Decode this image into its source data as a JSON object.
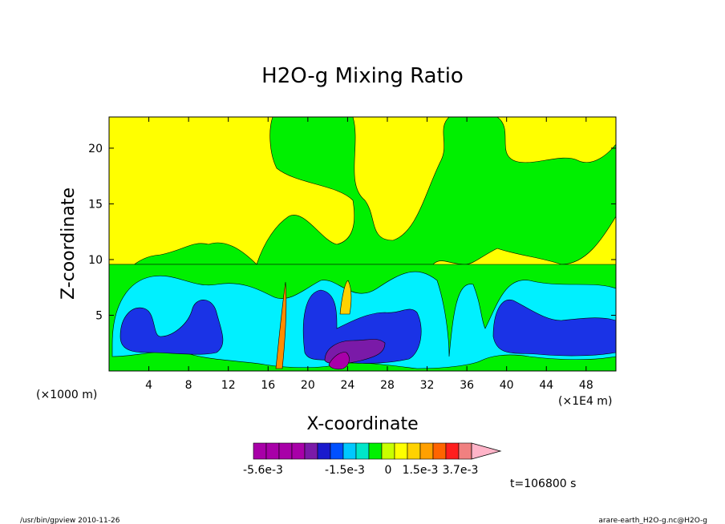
{
  "chart_data": {
    "type": "heatmap",
    "title": "H2O-g Mixing Ratio",
    "xlabel": "X-coordinate",
    "ylabel": "Z-coordinate",
    "x_unit_label": "(×1000 m)",
    "x_scale_label": "(×1E4 m)",
    "xlim": [
      0,
      51
    ],
    "ylim": [
      0,
      22.8
    ],
    "x_ticks": [
      "4",
      "8",
      "12",
      "16",
      "20",
      "24",
      "28",
      "32",
      "36",
      "40",
      "44",
      "48"
    ],
    "y_ticks": [
      "5",
      "10",
      "15",
      "20"
    ],
    "grid": false,
    "colorbar": {
      "colors": [
        "#a800a8",
        "#a800a8",
        "#a800a8",
        "#a800a8",
        "#7a1aa8",
        "#1a1acd",
        "#0050ff",
        "#00c8ff",
        "#00e6c8",
        "#00f000",
        "#c8ff00",
        "#ffff00",
        "#ffd200",
        "#ffa000",
        "#ff6400",
        "#ff1e1e",
        "#f08080",
        "#ffb4c8"
      ],
      "labels": [
        "-5.6e-3",
        "-1.5e-3",
        "0",
        "1.5e-3",
        "3.7e-3"
      ]
    },
    "time_label": "t=106800 s"
  },
  "footer": {
    "left": "/usr/bin/gpview  2010-11-26",
    "right": "arare-earth_H2O-g.nc@H2O-g"
  }
}
